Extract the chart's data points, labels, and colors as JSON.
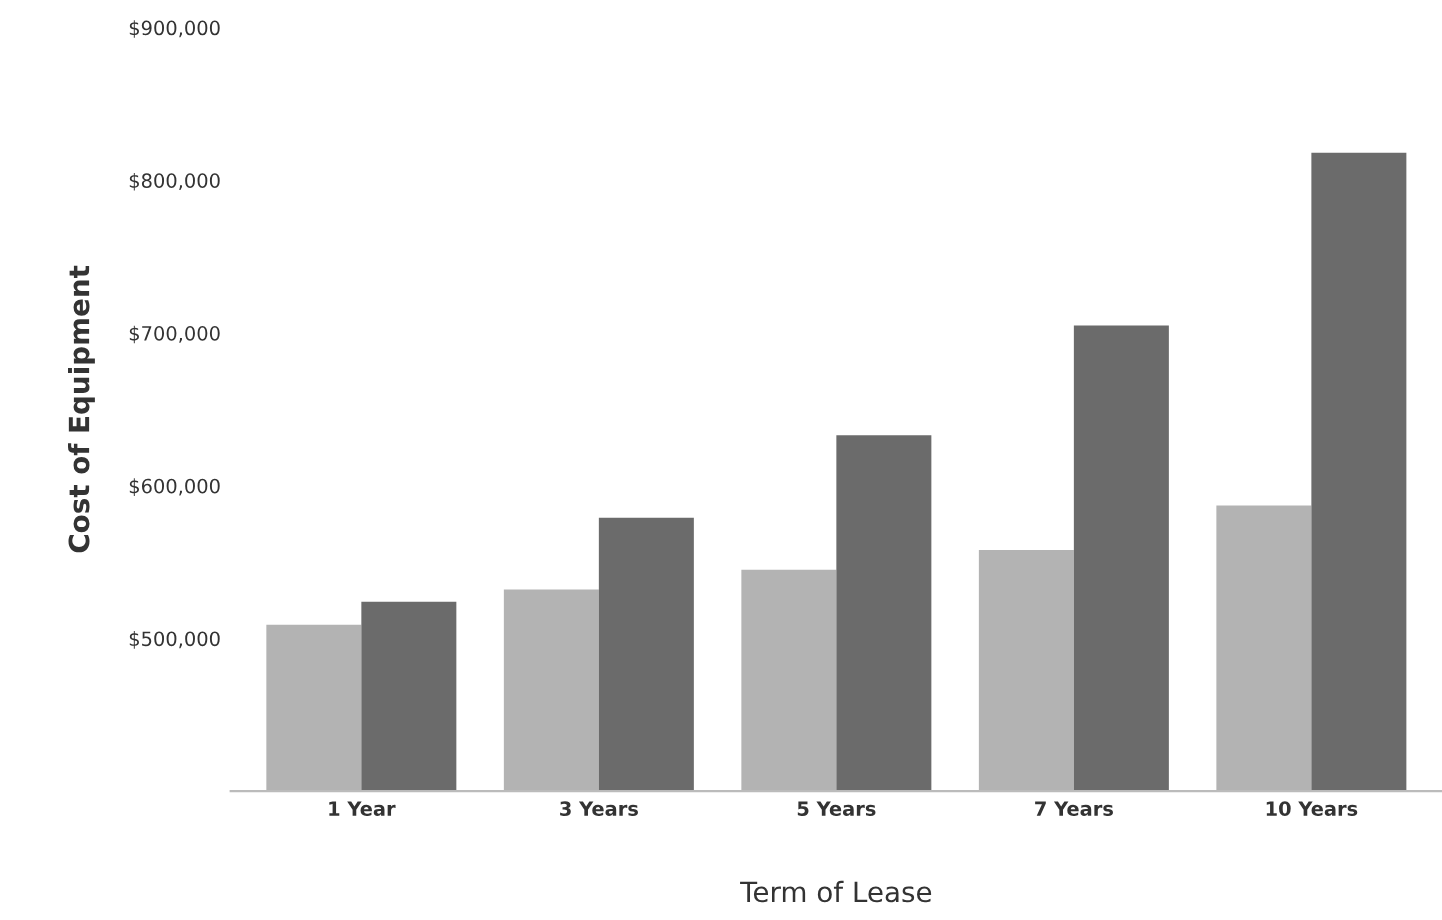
{
  "chart_data": {
    "type": "bar",
    "xlabel": "Term of Lease",
    "ylabel": "Cost of Equipment",
    "categories": [
      "1 Year",
      "3 Years",
      "5 Years",
      "7 Years",
      "10 Years"
    ],
    "series": [
      {
        "color": "#b3b3b3",
        "values": [
          509000,
          532000,
          545000,
          558000,
          587000
        ]
      },
      {
        "color": "#6b6b6b",
        "values": [
          524000,
          579000,
          633000,
          705000,
          818000
        ]
      }
    ],
    "ylim": [
      400000,
      900000
    ],
    "yticks": [
      {
        "value": 400000,
        "label": null
      },
      {
        "value": 500000,
        "label": "$500,000"
      },
      {
        "value": 600000,
        "label": "$600,000"
      },
      {
        "value": 700000,
        "label": "$700,000"
      },
      {
        "value": 800000,
        "label": "$800,000"
      },
      {
        "value": 900000,
        "label": "$900,000"
      }
    ],
    "grid": false,
    "legend": false
  }
}
